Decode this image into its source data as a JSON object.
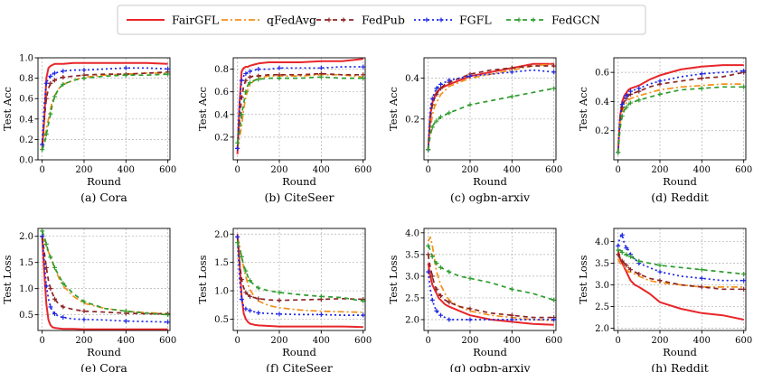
{
  "legend": [
    {
      "name": "FairGFL",
      "color": "#e8262a",
      "style": "solid"
    },
    {
      "name": "qFedAvg",
      "color": "#f39019",
      "style": "dashdot"
    },
    {
      "name": "FedPub",
      "color": "#8b2323",
      "style": "dashplus"
    },
    {
      "name": "FGFL",
      "color": "#1d26e6",
      "style": "dotplus"
    },
    {
      "name": "FedGCN",
      "color": "#2e9c2e",
      "style": "dashplus"
    }
  ],
  "chart_data": [
    {
      "type": "line",
      "caption": "(a) Cora",
      "xlabel": "Round",
      "ylabel": "Test Acc",
      "xlim": [
        -20,
        610
      ],
      "ylim": [
        0.0,
        1.0
      ],
      "xticks": [
        0,
        200,
        400,
        600
      ],
      "yticks": [
        0.0,
        0.2,
        0.4,
        0.6,
        0.8,
        1.0
      ],
      "x": [
        0,
        10,
        20,
        30,
        40,
        50,
        60,
        80,
        100,
        150,
        200,
        300,
        400,
        500,
        600
      ],
      "series": [
        {
          "name": "FairGFL",
          "values": [
            0.1,
            0.4,
            0.8,
            0.9,
            0.92,
            0.93,
            0.94,
            0.94,
            0.94,
            0.95,
            0.95,
            0.95,
            0.95,
            0.95,
            0.94
          ]
        },
        {
          "name": "qFedAvg",
          "values": [
            0.1,
            0.2,
            0.3,
            0.4,
            0.5,
            0.58,
            0.63,
            0.7,
            0.74,
            0.78,
            0.81,
            0.83,
            0.84,
            0.85,
            0.85
          ]
        },
        {
          "name": "FedPub",
          "values": [
            0.15,
            0.4,
            0.6,
            0.7,
            0.75,
            0.77,
            0.78,
            0.8,
            0.81,
            0.82,
            0.83,
            0.84,
            0.84,
            0.85,
            0.86
          ]
        },
        {
          "name": "FGFL",
          "values": [
            0.15,
            0.55,
            0.75,
            0.8,
            0.82,
            0.84,
            0.85,
            0.86,
            0.87,
            0.88,
            0.88,
            0.89,
            0.9,
            0.9,
            0.89
          ]
        },
        {
          "name": "FedGCN",
          "values": [
            0.1,
            0.15,
            0.25,
            0.35,
            0.45,
            0.55,
            0.62,
            0.7,
            0.74,
            0.78,
            0.8,
            0.82,
            0.83,
            0.83,
            0.84
          ]
        }
      ]
    },
    {
      "type": "line",
      "caption": "(b) CiteSeer",
      "xlabel": "Round",
      "ylabel": "Test Acc",
      "xlim": [
        -20,
        610
      ],
      "ylim": [
        0.0,
        0.9
      ],
      "xticks": [
        0,
        200,
        400,
        600
      ],
      "yticks": [
        0.2,
        0.4,
        0.6,
        0.8
      ],
      "x": [
        0,
        10,
        20,
        30,
        40,
        50,
        60,
        80,
        100,
        150,
        200,
        300,
        400,
        500,
        600
      ],
      "series": [
        {
          "name": "FairGFL",
          "values": [
            0.05,
            0.5,
            0.78,
            0.81,
            0.82,
            0.82,
            0.83,
            0.84,
            0.85,
            0.86,
            0.86,
            0.86,
            0.87,
            0.87,
            0.89
          ]
        },
        {
          "name": "qFedAvg",
          "values": [
            0.1,
            0.2,
            0.3,
            0.45,
            0.55,
            0.62,
            0.66,
            0.7,
            0.72,
            0.74,
            0.74,
            0.74,
            0.75,
            0.75,
            0.73
          ]
        },
        {
          "name": "FedPub",
          "values": [
            0.1,
            0.35,
            0.55,
            0.65,
            0.7,
            0.72,
            0.73,
            0.74,
            0.74,
            0.75,
            0.75,
            0.75,
            0.76,
            0.75,
            0.75
          ]
        },
        {
          "name": "FGFL",
          "values": [
            0.1,
            0.5,
            0.7,
            0.74,
            0.76,
            0.77,
            0.78,
            0.79,
            0.8,
            0.8,
            0.81,
            0.81,
            0.81,
            0.82,
            0.82
          ]
        },
        {
          "name": "FedGCN",
          "values": [
            0.15,
            0.25,
            0.4,
            0.5,
            0.6,
            0.66,
            0.68,
            0.7,
            0.71,
            0.72,
            0.72,
            0.72,
            0.73,
            0.72,
            0.72
          ]
        }
      ]
    },
    {
      "type": "line",
      "caption": "(c) ogbn-arxiv",
      "xlabel": "Round",
      "ylabel": "Test Acc",
      "xlim": [
        -20,
        610
      ],
      "ylim": [
        0.0,
        0.5
      ],
      "xticks": [
        0,
        200,
        400,
        600
      ],
      "yticks": [
        0.2,
        0.4
      ],
      "x": [
        0,
        10,
        20,
        30,
        40,
        50,
        60,
        80,
        100,
        150,
        200,
        300,
        400,
        500,
        600
      ],
      "series": [
        {
          "name": "FairGFL",
          "values": [
            0.05,
            0.22,
            0.28,
            0.31,
            0.33,
            0.34,
            0.35,
            0.36,
            0.37,
            0.39,
            0.41,
            0.43,
            0.45,
            0.47,
            0.47
          ]
        },
        {
          "name": "qFedAvg",
          "values": [
            0.05,
            0.15,
            0.22,
            0.26,
            0.28,
            0.3,
            0.32,
            0.34,
            0.36,
            0.38,
            0.4,
            0.42,
            0.44,
            0.46,
            0.47
          ]
        },
        {
          "name": "FedPub",
          "values": [
            0.05,
            0.2,
            0.27,
            0.3,
            0.32,
            0.34,
            0.35,
            0.37,
            0.38,
            0.4,
            0.42,
            0.44,
            0.45,
            0.46,
            0.46
          ]
        },
        {
          "name": "FGFL",
          "values": [
            0.05,
            0.25,
            0.3,
            0.33,
            0.35,
            0.36,
            0.37,
            0.38,
            0.39,
            0.4,
            0.41,
            0.42,
            0.43,
            0.44,
            0.43
          ]
        },
        {
          "name": "FedGCN",
          "values": [
            0.05,
            0.12,
            0.16,
            0.18,
            0.19,
            0.2,
            0.21,
            0.22,
            0.23,
            0.25,
            0.27,
            0.29,
            0.31,
            0.33,
            0.35
          ]
        }
      ]
    },
    {
      "type": "line",
      "caption": "(d) Reddit",
      "xlabel": "Round",
      "ylabel": "Test Acc",
      "xlim": [
        -20,
        610
      ],
      "ylim": [
        0.0,
        0.7
      ],
      "xticks": [
        0,
        200,
        400,
        600
      ],
      "yticks": [
        0.2,
        0.4,
        0.6
      ],
      "x": [
        0,
        10,
        20,
        30,
        40,
        50,
        60,
        80,
        100,
        150,
        200,
        300,
        400,
        500,
        600
      ],
      "series": [
        {
          "name": "FairGFL",
          "values": [
            0.05,
            0.3,
            0.4,
            0.44,
            0.46,
            0.48,
            0.49,
            0.5,
            0.51,
            0.55,
            0.58,
            0.62,
            0.64,
            0.65,
            0.65
          ]
        },
        {
          "name": "qFedAvg",
          "values": [
            0.05,
            0.25,
            0.33,
            0.37,
            0.39,
            0.41,
            0.42,
            0.43,
            0.44,
            0.46,
            0.48,
            0.5,
            0.51,
            0.52,
            0.52
          ]
        },
        {
          "name": "FedPub",
          "values": [
            0.05,
            0.28,
            0.36,
            0.4,
            0.42,
            0.44,
            0.45,
            0.46,
            0.47,
            0.5,
            0.52,
            0.54,
            0.56,
            0.57,
            0.6
          ]
        },
        {
          "name": "FGFL",
          "values": [
            0.05,
            0.3,
            0.38,
            0.42,
            0.44,
            0.46,
            0.47,
            0.48,
            0.49,
            0.52,
            0.54,
            0.57,
            0.59,
            0.6,
            0.61
          ]
        },
        {
          "name": "FedGCN",
          "values": [
            0.05,
            0.22,
            0.3,
            0.34,
            0.36,
            0.38,
            0.39,
            0.4,
            0.41,
            0.43,
            0.45,
            0.48,
            0.49,
            0.5,
            0.5
          ]
        }
      ]
    },
    {
      "type": "line",
      "caption": "(e) Cora",
      "xlabel": "Round",
      "ylabel": "Test Loss",
      "xlim": [
        -20,
        610
      ],
      "ylim": [
        0.2,
        2.15
      ],
      "xticks": [
        0,
        200,
        400,
        600
      ],
      "yticks": [
        0.5,
        1.0,
        1.5,
        2.0
      ],
      "x": [
        0,
        10,
        20,
        30,
        40,
        50,
        60,
        80,
        100,
        150,
        200,
        300,
        400,
        500,
        600
      ],
      "series": [
        {
          "name": "FairGFL",
          "values": [
            2.0,
            1.3,
            0.7,
            0.4,
            0.3,
            0.26,
            0.25,
            0.24,
            0.23,
            0.23,
            0.22,
            0.22,
            0.22,
            0.22,
            0.22
          ]
        },
        {
          "name": "qFedAvg",
          "values": [
            2.0,
            1.9,
            1.8,
            1.7,
            1.6,
            1.5,
            1.4,
            1.2,
            1.05,
            0.85,
            0.72,
            0.62,
            0.57,
            0.54,
            0.52
          ]
        },
        {
          "name": "FedPub",
          "values": [
            2.0,
            1.7,
            1.4,
            1.15,
            1.0,
            0.9,
            0.8,
            0.7,
            0.65,
            0.6,
            0.57,
            0.55,
            0.53,
            0.52,
            0.52
          ]
        },
        {
          "name": "FGFL",
          "values": [
            2.0,
            1.5,
            1.05,
            0.8,
            0.65,
            0.57,
            0.52,
            0.47,
            0.45,
            0.42,
            0.41,
            0.4,
            0.38,
            0.37,
            0.36
          ]
        },
        {
          "name": "FedGCN",
          "values": [
            2.1,
            2.0,
            1.85,
            1.7,
            1.6,
            1.5,
            1.4,
            1.25,
            1.1,
            0.9,
            0.75,
            0.62,
            0.57,
            0.53,
            0.5
          ]
        }
      ]
    },
    {
      "type": "line",
      "caption": "(f) CiteSeer",
      "xlabel": "Round",
      "ylabel": "Test Loss",
      "xlim": [
        -20,
        610
      ],
      "ylim": [
        0.3,
        2.1
      ],
      "xticks": [
        0,
        200,
        400,
        600
      ],
      "yticks": [
        0.5,
        1.0,
        1.5,
        2.0
      ],
      "x": [
        0,
        10,
        20,
        30,
        40,
        50,
        60,
        80,
        100,
        150,
        200,
        300,
        400,
        500,
        600
      ],
      "series": [
        {
          "name": "FairGFL",
          "values": [
            2.0,
            1.5,
            0.9,
            0.6,
            0.5,
            0.45,
            0.42,
            0.4,
            0.39,
            0.38,
            0.37,
            0.37,
            0.37,
            0.37,
            0.36
          ]
        },
        {
          "name": "qFedAvg",
          "values": [
            1.95,
            1.8,
            1.6,
            1.4,
            1.25,
            1.12,
            1.02,
            0.9,
            0.82,
            0.74,
            0.7,
            0.66,
            0.64,
            0.63,
            0.62
          ]
        },
        {
          "name": "FedPub",
          "values": [
            1.95,
            1.5,
            1.2,
            1.05,
            0.97,
            0.93,
            0.9,
            0.88,
            0.86,
            0.84,
            0.83,
            0.84,
            0.85,
            0.86,
            0.85
          ]
        },
        {
          "name": "FGFL",
          "values": [
            1.95,
            1.2,
            0.85,
            0.72,
            0.68,
            0.66,
            0.65,
            0.63,
            0.61,
            0.6,
            0.59,
            0.58,
            0.58,
            0.57,
            0.57
          ]
        },
        {
          "name": "FedGCN",
          "values": [
            1.85,
            1.75,
            1.6,
            1.45,
            1.35,
            1.25,
            1.18,
            1.1,
            1.05,
            1.0,
            0.97,
            0.93,
            0.9,
            0.88,
            0.82
          ]
        }
      ]
    },
    {
      "type": "line",
      "caption": "(g) ogbn-arxiv",
      "xlabel": "Round",
      "ylabel": "Test Loss",
      "xlim": [
        -20,
        610
      ],
      "ylim": [
        1.75,
        4.1
      ],
      "xticks": [
        0,
        200,
        400,
        600
      ],
      "yticks": [
        2.0,
        2.5,
        3.0,
        3.5,
        4.0
      ],
      "x": [
        0,
        10,
        20,
        30,
        40,
        50,
        60,
        80,
        100,
        150,
        200,
        300,
        400,
        500,
        600
      ],
      "series": [
        {
          "name": "FairGFL",
          "values": [
            3.3,
            3.0,
            2.8,
            2.7,
            2.6,
            2.5,
            2.45,
            2.35,
            2.3,
            2.2,
            2.1,
            2.0,
            1.95,
            1.9,
            1.88
          ]
        },
        {
          "name": "qFedAvg",
          "values": [
            3.8,
            3.9,
            3.7,
            3.4,
            3.1,
            2.95,
            2.8,
            2.6,
            2.45,
            2.3,
            2.2,
            2.1,
            2.05,
            2.0,
            1.98
          ]
        },
        {
          "name": "FedPub",
          "values": [
            3.5,
            3.2,
            3.0,
            2.8,
            2.7,
            2.6,
            2.55,
            2.45,
            2.4,
            2.3,
            2.25,
            2.15,
            2.1,
            2.05,
            2.05
          ]
        },
        {
          "name": "FGFL",
          "values": [
            3.1,
            2.7,
            2.45,
            2.3,
            2.2,
            2.15,
            2.1,
            2.05,
            2.0,
            2.0,
            2.0,
            2.0,
            2.0,
            2.0,
            2.0
          ]
        },
        {
          "name": "FedGCN",
          "values": [
            3.7,
            3.6,
            3.45,
            3.35,
            3.3,
            3.25,
            3.2,
            3.15,
            3.1,
            3.0,
            2.95,
            2.85,
            2.7,
            2.6,
            2.45
          ]
        }
      ]
    },
    {
      "type": "line",
      "caption": "(h) Reddit",
      "xlabel": "Round",
      "ylabel": "Test Loss",
      "xlim": [
        -20,
        610
      ],
      "ylim": [
        1.95,
        4.3
      ],
      "xticks": [
        0,
        200,
        400,
        600
      ],
      "yticks": [
        2.0,
        2.5,
        3.0,
        3.5,
        4.0
      ],
      "x": [
        0,
        10,
        20,
        30,
        40,
        50,
        60,
        80,
        100,
        150,
        200,
        300,
        400,
        500,
        600
      ],
      "series": [
        {
          "name": "FairGFL",
          "values": [
            3.8,
            3.6,
            3.5,
            3.4,
            3.3,
            3.2,
            3.1,
            3.0,
            2.95,
            2.8,
            2.6,
            2.45,
            2.35,
            2.3,
            2.2
          ]
        },
        {
          "name": "qFedAvg",
          "values": [
            3.6,
            3.5,
            3.45,
            3.4,
            3.35,
            3.3,
            3.3,
            3.25,
            3.2,
            3.1,
            3.05,
            3.0,
            2.95,
            2.95,
            2.95
          ]
        },
        {
          "name": "FedPub",
          "values": [
            3.7,
            3.6,
            3.55,
            3.5,
            3.45,
            3.4,
            3.35,
            3.3,
            3.25,
            3.15,
            3.1,
            3.0,
            2.95,
            2.9,
            2.9
          ]
        },
        {
          "name": "FGFL",
          "values": [
            3.9,
            4.1,
            4.15,
            3.95,
            3.85,
            3.8,
            3.7,
            3.6,
            3.5,
            3.4,
            3.3,
            3.2,
            3.15,
            3.1,
            3.1
          ]
        },
        {
          "name": "FedGCN",
          "values": [
            3.8,
            3.8,
            3.75,
            3.7,
            3.7,
            3.65,
            3.65,
            3.6,
            3.55,
            3.5,
            3.45,
            3.4,
            3.35,
            3.3,
            3.25
          ]
        }
      ]
    }
  ]
}
